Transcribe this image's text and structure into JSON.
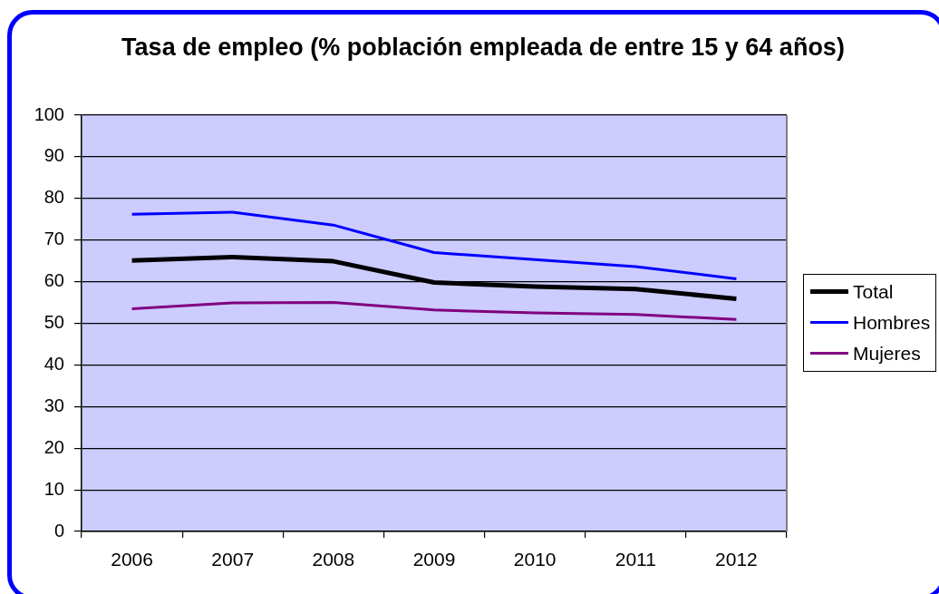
{
  "chart_data": {
    "type": "line",
    "title": "Tasa de empleo (% población empleada de entre 15 y 64 años)",
    "categories": [
      "2006",
      "2007",
      "2008",
      "2009",
      "2010",
      "2011",
      "2012"
    ],
    "series": [
      {
        "name": "Total",
        "color": "#000000",
        "values": [
          65.1,
          65.9,
          64.9,
          59.8,
          58.8,
          58.2,
          55.9
        ]
      },
      {
        "name": "Hombres",
        "color": "#0000ff",
        "values": [
          76.2,
          76.7,
          73.6,
          67.0,
          65.3,
          63.6,
          60.7
        ]
      },
      {
        "name": "Mujeres",
        "color": "#800080",
        "values": [
          53.5,
          54.9,
          55.0,
          53.2,
          52.5,
          52.1,
          50.9
        ]
      }
    ],
    "ylim": [
      0,
      100
    ],
    "yticks": [
      0,
      10,
      20,
      30,
      40,
      50,
      60,
      70,
      80,
      90,
      100
    ],
    "grid": "y",
    "legend": "right",
    "marker": "none"
  }
}
